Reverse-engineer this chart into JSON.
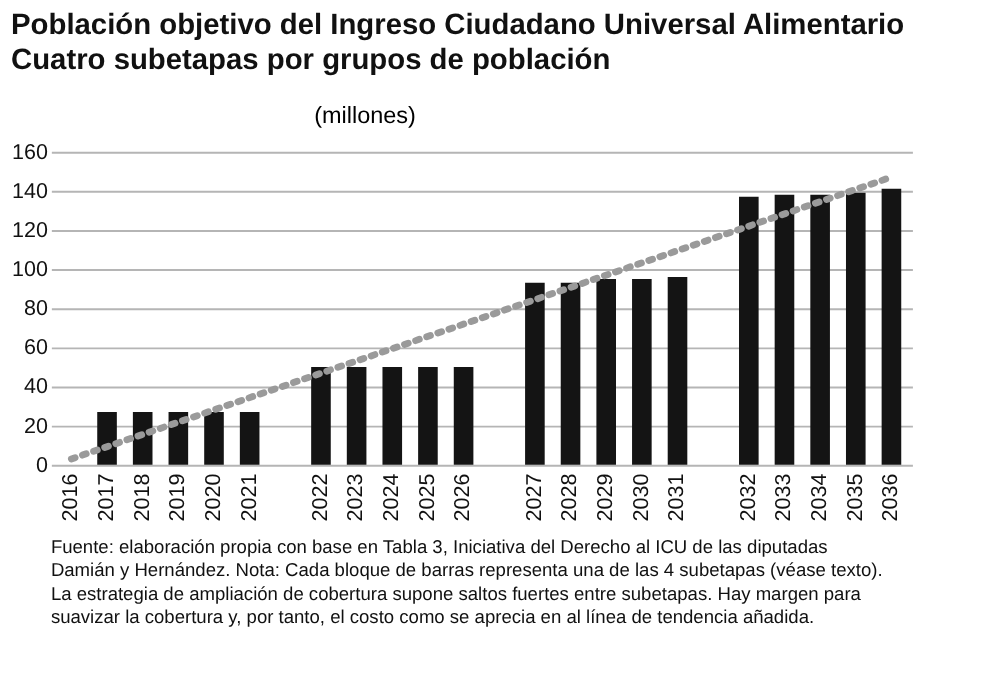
{
  "chart_data": {
    "type": "bar",
    "title": "Población objetivo del Ingreso Ciudadano Universal Alimentario",
    "subtitle": "Cuatro subetapas por grupos de población",
    "ylabel": "(millones)",
    "categories": [
      "2016",
      "2017",
      "2018",
      "2019",
      "2020",
      "2021",
      null,
      "2022",
      "2023",
      "2024",
      "2025",
      "2026",
      null,
      "2027",
      "2028",
      "2029",
      "2030",
      "2031",
      null,
      "2032",
      "2033",
      "2034",
      "2035",
      "2036"
    ],
    "series": [
      {
        "color": "#141414",
        "values": [
          null,
          27,
          27,
          27,
          27,
          27,
          null,
          50,
          50,
          50,
          50,
          50,
          null,
          93,
          93,
          95,
          95,
          96,
          null,
          137,
          138,
          138,
          139,
          141
        ]
      },
      {
        "type": "line",
        "color": "#9a9a9a",
        "line_style": "dotted",
        "values": [
          3,
          null,
          null,
          null,
          null,
          null,
          null,
          null,
          null,
          null,
          null,
          null,
          null,
          null,
          null,
          null,
          null,
          null,
          null,
          null,
          null,
          null,
          null,
          147
        ]
      }
    ],
    "ylim": [
      0,
      160
    ],
    "yticks": [
      0,
      20,
      40,
      60,
      80,
      100,
      120,
      140,
      160
    ],
    "grid": "y",
    "annotations": [
      "Fuente: elaboración propia con base en Tabla 3, Iniciativa del Derecho al ICU de las diputadas",
      "Damián y Hernández. Nota: Cada bloque de barras representa una de las 4 subetapas (véase texto).",
      "La estrategia de ampliación de cobertura supone saltos fuertes entre subetapas. Hay margen para",
      "suavizar la cobertura y, por tanto, el costo como se aprecia en al línea de tendencia añadida."
    ]
  }
}
